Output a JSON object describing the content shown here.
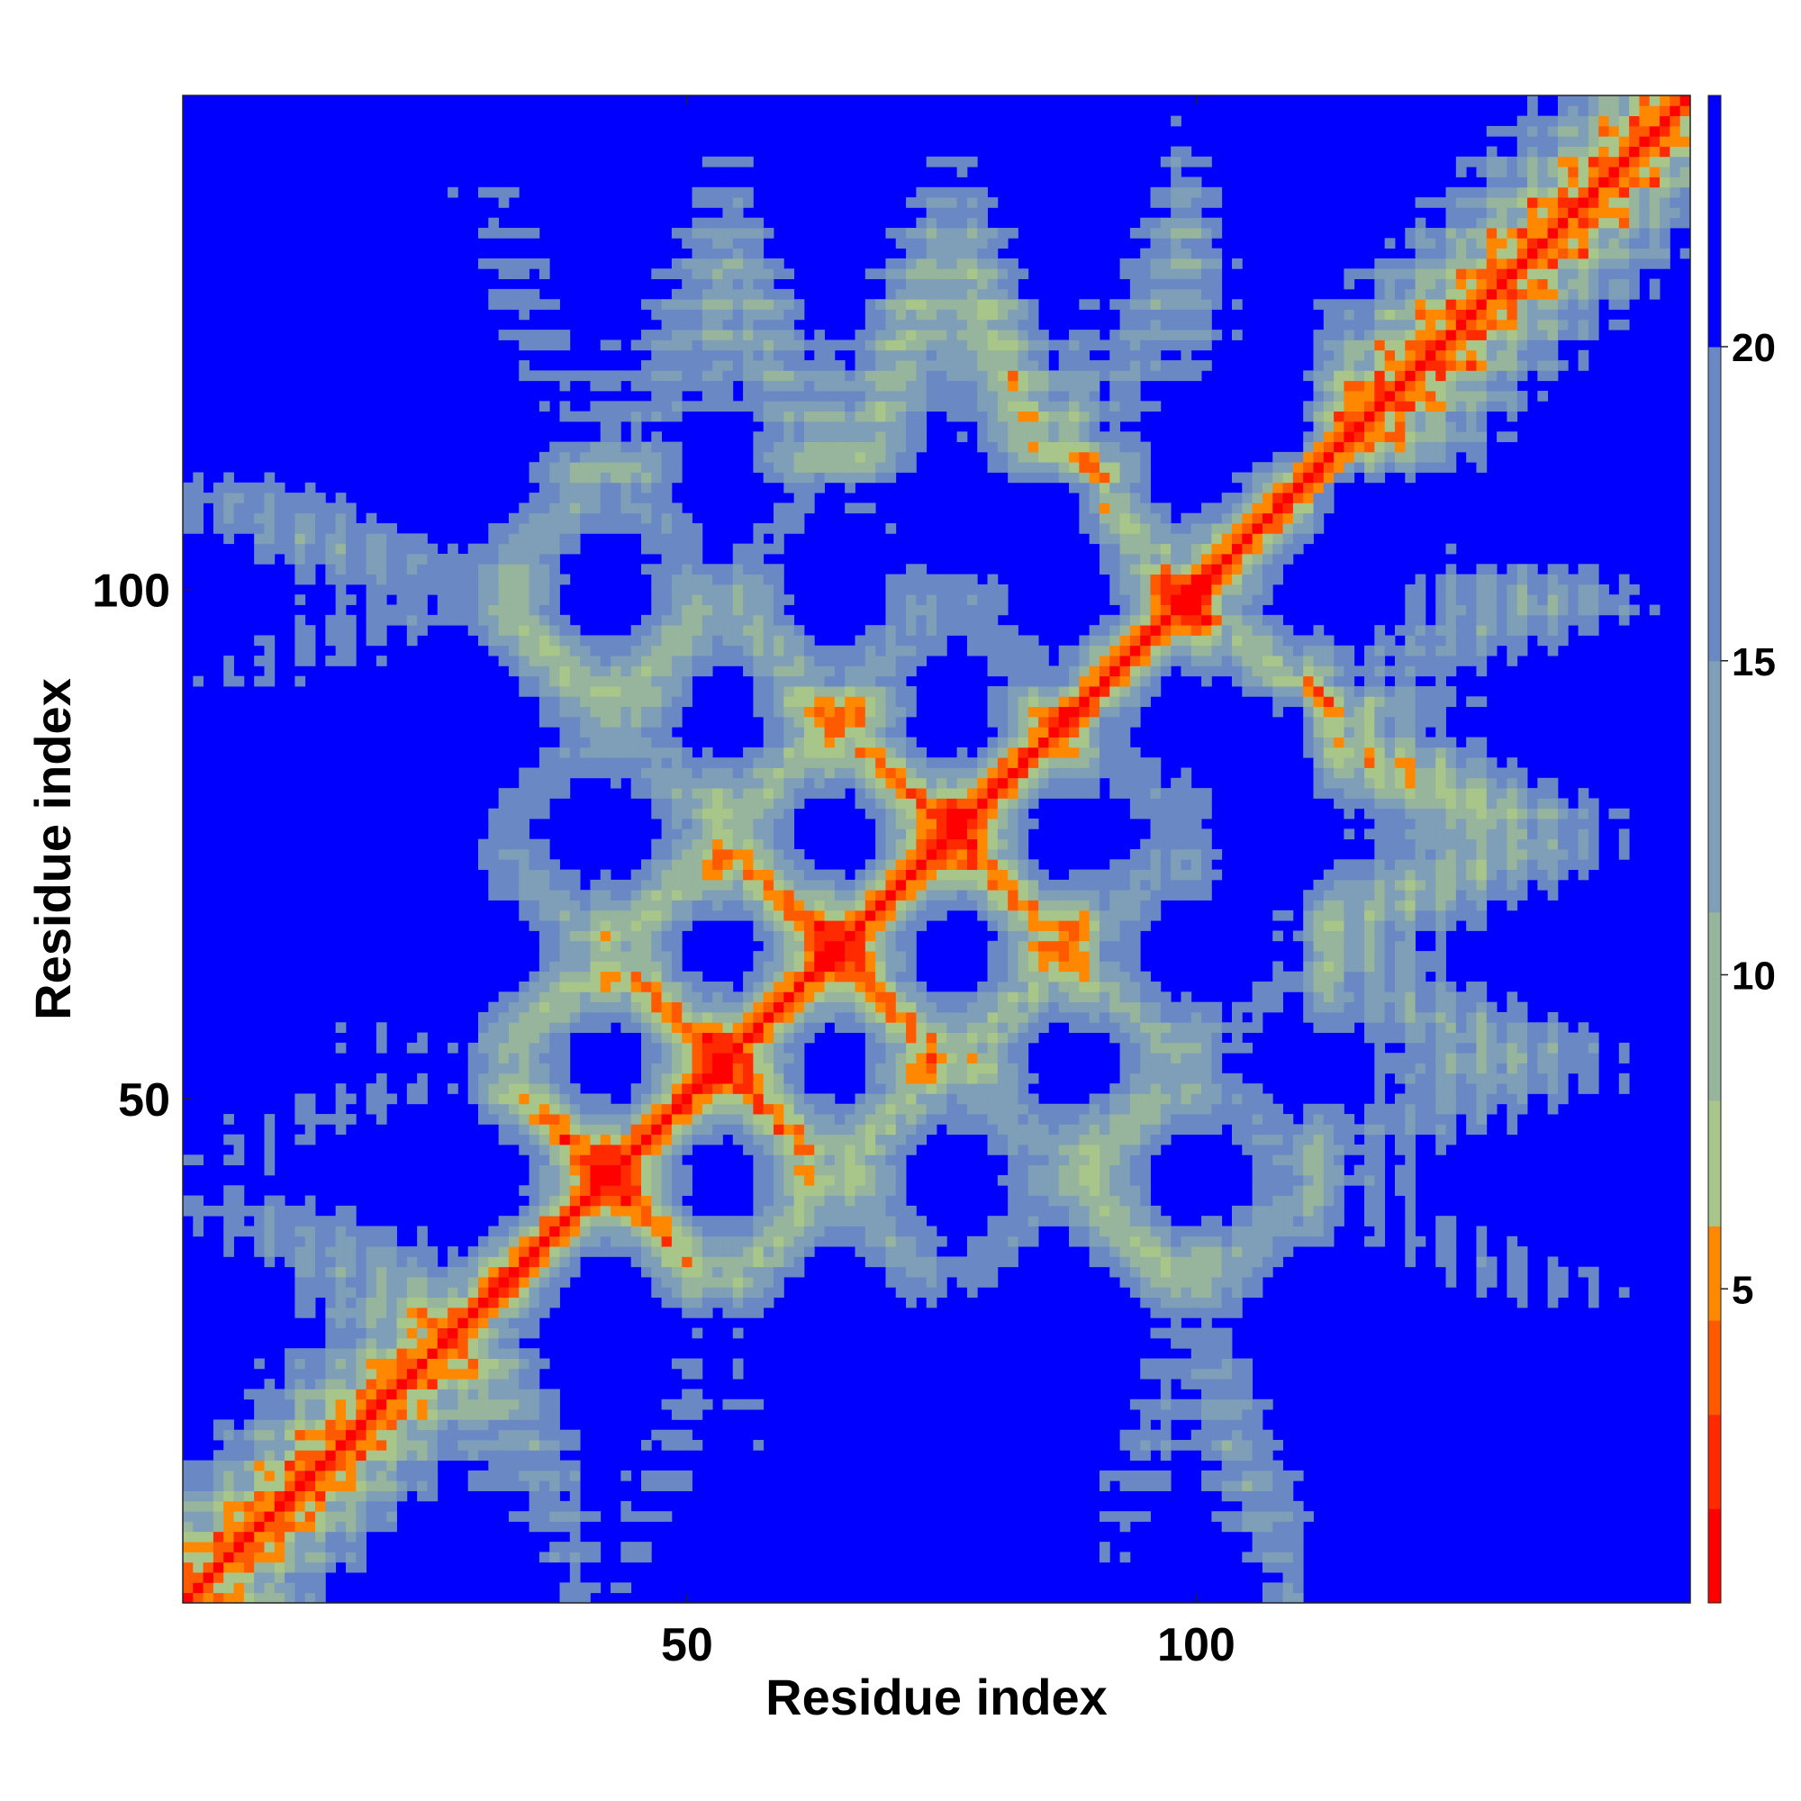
{
  "chart_data": {
    "type": "heatmap",
    "title": "",
    "xlabel": "Residue index",
    "ylabel": "Residue index",
    "n_residues": 148,
    "xlim": [
      1,
      148
    ],
    "ylim": [
      1,
      148
    ],
    "x_ticks": [
      50,
      100
    ],
    "y_ticks": [
      50,
      100
    ],
    "colorbar": {
      "range": [
        0,
        24
      ],
      "ticks": [
        5,
        10,
        15,
        20
      ],
      "colors": [
        "#ff0000",
        "#ff2a00",
        "#ff5a00",
        "#ff8800",
        "#a9c68a",
        "#97b49c",
        "#7f9eb8",
        "#6a89c4",
        "#0000ff"
      ],
      "bounds": [
        0,
        1.5,
        3,
        4.5,
        6,
        8,
        11,
        15,
        20,
        24
      ]
    },
    "diagonal_band": "red",
    "background": "blue"
  }
}
